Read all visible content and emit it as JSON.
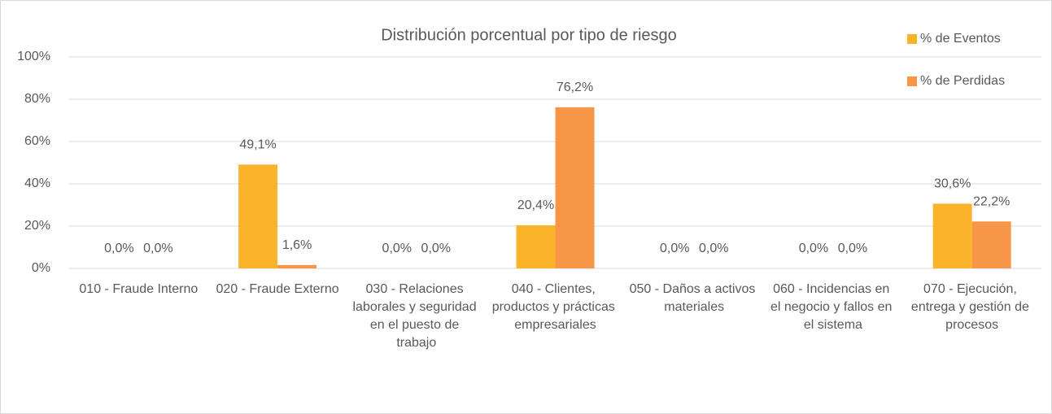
{
  "chart_data": {
    "type": "bar",
    "title": "Distribución porcentual por tipo de riesgo",
    "categories": [
      "010 - Fraude Interno",
      "020 - Fraude Externo",
      "030 - Relaciones laborales y seguridad en el puesto de trabajo",
      "040 - Clientes, productos y prácticas empresariales",
      "050 - Daños a activos materiales",
      "060 - Incidencias en el negocio y fallos en el sistema",
      "070 - Ejecución, entrega y gestión de procesos"
    ],
    "series": [
      {
        "name": "% de Eventos",
        "color": "#fbb32c",
        "values": [
          0,
          49.1,
          0,
          20.4,
          0,
          0,
          30.6
        ],
        "value_labels": [
          "0,0%",
          "49,1%",
          "0,0%",
          "20,4%",
          "0,0%",
          "0,0%",
          "30,6%"
        ]
      },
      {
        "name": "% de Perdidas",
        "color": "#f79646",
        "values": [
          0,
          1.6,
          0,
          76.2,
          0,
          0,
          22.2
        ],
        "value_labels": [
          "0,0%",
          "1,6%",
          "0,0%",
          "76,2%",
          "0,0%",
          "0,0%",
          "22,2%"
        ]
      }
    ],
    "ylim": [
      0,
      100
    ],
    "yticks": [
      {
        "value": 0,
        "label": "0%"
      },
      {
        "value": 20,
        "label": "20%"
      },
      {
        "value": 40,
        "label": "40%"
      },
      {
        "value": 60,
        "label": "60%"
      },
      {
        "value": 80,
        "label": "80%"
      },
      {
        "value": 100,
        "label": "100%"
      }
    ],
    "grid": true,
    "legend": "top-right"
  }
}
